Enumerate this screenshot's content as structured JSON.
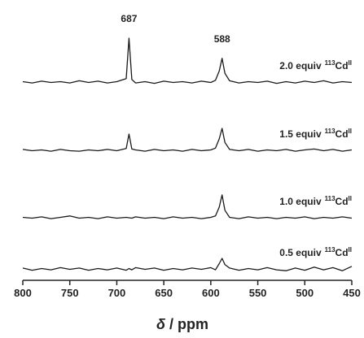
{
  "chart_data": {
    "type": "line",
    "xlabel": [
      "δ",
      "/ ppm"
    ],
    "xlim": [
      800,
      450
    ],
    "xticks": [
      800,
      750,
      700,
      650,
      600,
      550,
      500,
      450
    ],
    "label_suffix": {
      "isotope": "113",
      "element": "Cd",
      "oxidation": "II"
    },
    "annotations": [
      {
        "x": 687
      },
      {
        "x": 588
      }
    ],
    "x": [
      800,
      790,
      780,
      770,
      760,
      750,
      740,
      730,
      720,
      710,
      700,
      690,
      687,
      684,
      680,
      670,
      660,
      650,
      640,
      630,
      620,
      610,
      600,
      595,
      591,
      588,
      585,
      580,
      570,
      560,
      550,
      540,
      530,
      520,
      510,
      500,
      490,
      480,
      470,
      460,
      450
    ],
    "series": [
      {
        "name": "2.0 equiv",
        "color": "#1a1a1a",
        "values": [
          1,
          -2,
          2,
          -1,
          1,
          -2,
          3,
          -1,
          2,
          -2,
          1,
          8,
          100,
          6,
          -2,
          1,
          -3,
          2,
          -1,
          1,
          -2,
          2,
          -1,
          4,
          25,
          54,
          20,
          3,
          -2,
          1,
          -1,
          2,
          -3,
          1,
          -2,
          2,
          -1,
          3,
          -2,
          1,
          -1
        ]
      },
      {
        "name": "1.5 equiv",
        "color": "#1a1a1a",
        "values": [
          2,
          -1,
          1,
          -2,
          2,
          -1,
          -2,
          1,
          -1,
          2,
          -1,
          4,
          37,
          3,
          1,
          -2,
          2,
          -1,
          1,
          -2,
          2,
          -1,
          1,
          5,
          26,
          50,
          18,
          2,
          -1,
          2,
          -2,
          1,
          -1,
          2,
          -2,
          1,
          3,
          -1,
          2,
          -2,
          1
        ]
      },
      {
        "name": "1.0 equiv",
        "color": "#1a1a1a",
        "values": [
          1,
          -1,
          2,
          -2,
          1,
          4,
          -1,
          1,
          -2,
          2,
          -1,
          1,
          0,
          -1,
          2,
          -1,
          1,
          -2,
          2,
          -1,
          1,
          -2,
          1,
          4,
          24,
          52,
          17,
          1,
          -2,
          2,
          -1,
          1,
          -2,
          1,
          -1,
          2,
          -2,
          1,
          -1,
          2,
          -1
        ]
      },
      {
        "name": "0.5 equiv",
        "color": "#1a1a1a",
        "values": [
          2,
          -3,
          1,
          -2,
          3,
          -1,
          2,
          -3,
          1,
          -2,
          2,
          -3,
          1,
          -2,
          3,
          -1,
          2,
          -3,
          1,
          -2,
          2,
          -1,
          3,
          -2,
          12,
          24,
          10,
          2,
          -3,
          1,
          -2,
          3,
          -2,
          -4,
          2,
          -3,
          4,
          -2,
          3,
          -4,
          6
        ]
      }
    ]
  }
}
